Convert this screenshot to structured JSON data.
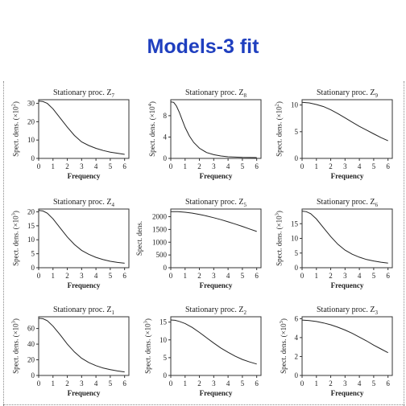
{
  "slide": {
    "title": "Models-3 fit"
  },
  "chart_data": [
    {
      "type": "line",
      "title": "Stationary proc. Z7",
      "title_base": "Stationary proc. Z",
      "subscript": "7",
      "xlabel": "Frequency",
      "ylabel_base": "Spect. dens. (×10",
      "ylabel_exp": "2",
      "ylabel_tail": ")",
      "xticks": [
        0,
        1,
        2,
        3,
        4,
        5,
        6
      ],
      "xlim": [
        0,
        6.3
      ],
      "yticks": [
        0,
        10,
        20,
        30
      ],
      "ylim": [
        0,
        32
      ],
      "series": [
        {
          "x": [
            0,
            0.3,
            0.6,
            1,
            1.5,
            2,
            2.5,
            3,
            3.5,
            4,
            4.5,
            5,
            5.5,
            6
          ],
          "y": [
            31.2,
            31,
            30,
            27,
            22,
            17,
            12.5,
            9,
            7,
            5.5,
            4.3,
            3.4,
            2.8,
            2.2
          ]
        }
      ]
    },
    {
      "type": "line",
      "title": "Stationary proc. Z8",
      "title_base": "Stationary proc. Z",
      "subscript": "8",
      "xlabel": "Frequency",
      "ylabel_base": "Spect. dens. (×10",
      "ylabel_exp": "4",
      "ylabel_tail": ")",
      "xticks": [
        0,
        1,
        2,
        3,
        4,
        5,
        6
      ],
      "xlim": [
        0,
        6.3
      ],
      "yticks": [
        0,
        4,
        8
      ],
      "ylim": [
        0,
        11
      ],
      "series": [
        {
          "x": [
            0,
            0.2,
            0.4,
            0.6,
            0.8,
            1,
            1.3,
            1.6,
            2,
            2.5,
            3,
            3.5,
            4,
            5,
            6
          ],
          "y": [
            10.6,
            10.5,
            9.8,
            8.6,
            7.2,
            5.8,
            4.2,
            3,
            1.9,
            1.1,
            0.7,
            0.45,
            0.3,
            0.2,
            0.15
          ]
        }
      ]
    },
    {
      "type": "line",
      "title": "Stationary proc. Z9",
      "title_base": "Stationary proc. Z",
      "subscript": "9",
      "xlabel": "Frequency",
      "ylabel_base": "Spect. dens. (×10",
      "ylabel_exp": "2",
      "ylabel_tail": ")",
      "xticks": [
        0,
        1,
        2,
        3,
        4,
        5,
        6
      ],
      "xlim": [
        0,
        6.3
      ],
      "yticks": [
        0,
        5,
        10
      ],
      "ylim": [
        0,
        11
      ],
      "series": [
        {
          "x": [
            0,
            0.5,
            1,
            1.5,
            2,
            2.5,
            3,
            3.5,
            4,
            4.5,
            5,
            5.5,
            6
          ],
          "y": [
            10.5,
            10.4,
            10.1,
            9.7,
            9.1,
            8.4,
            7.6,
            6.8,
            6,
            5.3,
            4.6,
            3.9,
            3.3
          ]
        }
      ]
    },
    {
      "type": "line",
      "title": "Stationary proc. Z4",
      "title_base": "Stationary proc. Z",
      "subscript": "4",
      "xlabel": "Frequency",
      "ylabel_base": "Spect. dens. (×10",
      "ylabel_exp": "3",
      "ylabel_tail": ")",
      "xticks": [
        0,
        1,
        2,
        3,
        4,
        5,
        6
      ],
      "xlim": [
        0,
        6.3
      ],
      "yticks": [
        0,
        5,
        10,
        15,
        20
      ],
      "ylim": [
        0,
        21
      ],
      "series": [
        {
          "x": [
            0,
            0.3,
            0.6,
            1,
            1.5,
            2,
            2.5,
            3,
            3.5,
            4,
            4.5,
            5,
            5.5,
            6
          ],
          "y": [
            20.5,
            20.3,
            19.5,
            17.5,
            14.2,
            11,
            8.3,
            6.2,
            4.8,
            3.7,
            2.9,
            2.3,
            1.9,
            1.6
          ]
        }
      ]
    },
    {
      "type": "line",
      "title": "Stationary proc. Z5",
      "title_base": "Stationary proc. Z",
      "subscript": "5",
      "xlabel": "Frequency",
      "ylabel_base": "Spect. dens.",
      "ylabel_exp": "",
      "ylabel_tail": "",
      "xticks": [
        0,
        1,
        2,
        3,
        4,
        5,
        6
      ],
      "xlim": [
        0,
        6.3
      ],
      "yticks": [
        0,
        500,
        1000,
        1500,
        2000
      ],
      "ylim": [
        0,
        2300
      ],
      "series": [
        {
          "x": [
            0,
            0.5,
            1,
            1.5,
            2,
            2.5,
            3,
            3.5,
            4,
            4.5,
            5,
            5.5,
            6
          ],
          "y": [
            2200,
            2195,
            2175,
            2140,
            2090,
            2030,
            1960,
            1885,
            1800,
            1710,
            1620,
            1520,
            1420
          ]
        }
      ]
    },
    {
      "type": "line",
      "title": "Stationary proc. Z6",
      "title_base": "Stationary proc. Z",
      "subscript": "6",
      "xlabel": "Frequency",
      "ylabel_base": "Spect. dens. (×10",
      "ylabel_exp": "3",
      "ylabel_tail": ")",
      "xticks": [
        0,
        1,
        2,
        3,
        4,
        5,
        6
      ],
      "xlim": [
        0,
        6.3
      ],
      "yticks": [
        0,
        5,
        10,
        15
      ],
      "ylim": [
        0,
        20
      ],
      "series": [
        {
          "x": [
            0,
            0.3,
            0.6,
            1,
            1.5,
            2,
            2.5,
            3,
            3.5,
            4,
            4.5,
            5,
            5.5,
            6
          ],
          "y": [
            19.3,
            19.1,
            18.4,
            16.6,
            13.6,
            10.6,
            8,
            6,
            4.6,
            3.6,
            2.8,
            2.3,
            1.9,
            1.6
          ]
        }
      ]
    },
    {
      "type": "line",
      "title": "Stationary proc. Z1",
      "title_base": "Stationary proc. Z",
      "subscript": "1",
      "xlabel": "Frequency",
      "ylabel_base": "Spect. dens. (×10",
      "ylabel_exp": "3",
      "ylabel_tail": ")",
      "xticks": [
        0,
        1,
        2,
        3,
        4,
        5,
        6
      ],
      "xlim": [
        0,
        6.3
      ],
      "yticks": [
        0,
        20,
        40,
        60
      ],
      "ylim": [
        0,
        75
      ],
      "series": [
        {
          "x": [
            0,
            0.3,
            0.6,
            1,
            1.5,
            2,
            2.5,
            3,
            3.5,
            4,
            4.5,
            5,
            5.5,
            6
          ],
          "y": [
            73,
            72.5,
            70,
            63,
            52,
            40,
            30,
            22,
            16.5,
            12.5,
            9.5,
            7.5,
            5.8,
            4.5
          ]
        }
      ]
    },
    {
      "type": "line",
      "title": "Stationary proc. Z2",
      "title_base": "Stationary proc. Z",
      "subscript": "2",
      "xlabel": "Frequency",
      "ylabel_base": "Spect. dens. (×10",
      "ylabel_exp": "3",
      "ylabel_tail": ")",
      "xticks": [
        0,
        1,
        2,
        3,
        4,
        5,
        6
      ],
      "xlim": [
        0,
        6.3
      ],
      "yticks": [
        0,
        5,
        10,
        15
      ],
      "ylim": [
        0,
        16.5
      ],
      "series": [
        {
          "x": [
            0,
            0.3,
            0.6,
            1,
            1.5,
            2,
            2.5,
            3,
            3.5,
            4,
            4.5,
            5,
            5.5,
            6
          ],
          "y": [
            15.6,
            15.5,
            15.2,
            14.6,
            13.5,
            12.1,
            10.6,
            9.1,
            7.7,
            6.5,
            5.4,
            4.5,
            3.8,
            3.2
          ]
        }
      ]
    },
    {
      "type": "line",
      "title": "Stationary proc. Z3",
      "title_base": "Stationary proc. Z",
      "subscript": "3",
      "xlabel": "Frequency",
      "ylabel_base": "Spect. dens. (×10",
      "ylabel_exp": "3",
      "ylabel_tail": ")",
      "xticks": [
        0,
        1,
        2,
        3,
        4,
        5,
        6
      ],
      "xlim": [
        0,
        6.3
      ],
      "yticks": [
        0,
        2,
        4,
        6
      ],
      "ylim": [
        0,
        6.2
      ],
      "series": [
        {
          "x": [
            0,
            0.5,
            1,
            1.5,
            2,
            2.5,
            3,
            3.5,
            4,
            4.5,
            5,
            5.5,
            6
          ],
          "y": [
            5.85,
            5.8,
            5.7,
            5.55,
            5.35,
            5.1,
            4.8,
            4.45,
            4.05,
            3.65,
            3.2,
            2.8,
            2.4
          ]
        }
      ]
    }
  ]
}
